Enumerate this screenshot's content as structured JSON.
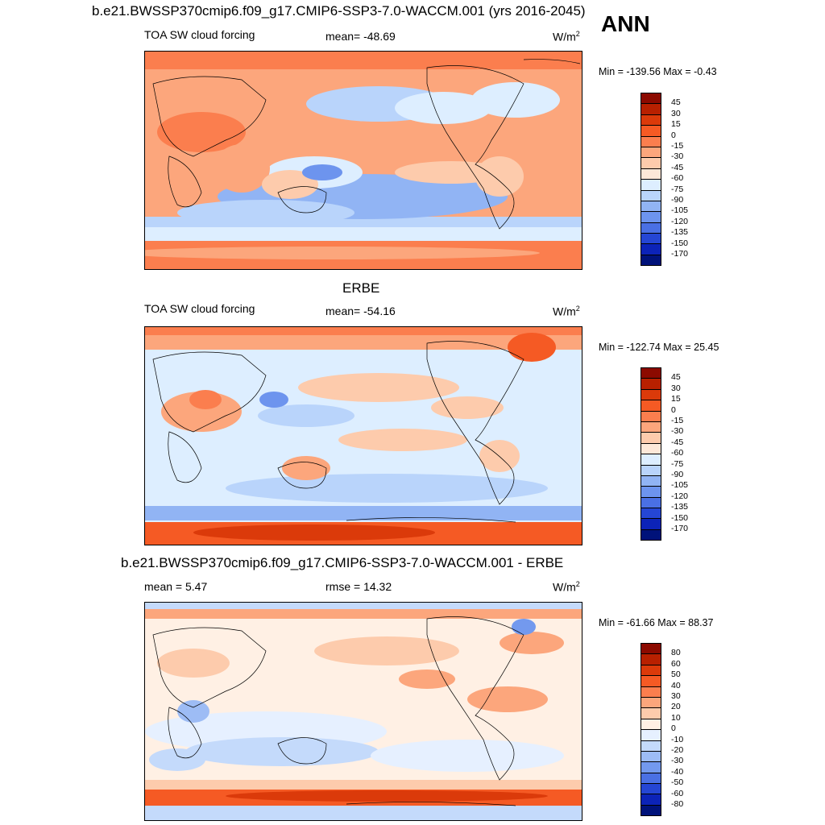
{
  "header": {
    "title": "b.e21.BWSSP370cmip6.f09_g17.CMIP6-SSP3-7.0-WACCM.001 (yrs 2016-2045)",
    "season": "ANN"
  },
  "panels": [
    {
      "id": "model",
      "heading": "",
      "left_label": "TOA SW cloud forcing",
      "center_label": "mean= -48.69",
      "units": "W/m",
      "units_sup": "2",
      "minmax": "Min = -139.56 Max =  -0.43",
      "levels": [
        "45",
        "30",
        "15",
        "0",
        "-15",
        "-30",
        "-45",
        "-60",
        "-75",
        "-90",
        "-105",
        "-120",
        "-135",
        "-150",
        "-170"
      ],
      "colors": [
        "#8c0a00",
        "#b82000",
        "#db3a0a",
        "#f55a24",
        "#fb7e4e",
        "#fca67c",
        "#fdcbac",
        "#fde8d8",
        "#ddeeff",
        "#b9d4fb",
        "#91b4f4",
        "#6d94ee",
        "#4a70e4",
        "#2546d4",
        "#0c23b8",
        "#00127a"
      ]
    },
    {
      "id": "obs",
      "heading": "ERBE",
      "left_label": "TOA SW cloud forcing",
      "center_label": "mean= -54.16",
      "units": "W/m",
      "units_sup": "2",
      "minmax": "Min = -122.74 Max =  25.45",
      "levels": [
        "45",
        "30",
        "15",
        "0",
        "-15",
        "-30",
        "-45",
        "-60",
        "-75",
        "-90",
        "-105",
        "-120",
        "-135",
        "-150",
        "-170"
      ],
      "colors": [
        "#8c0a00",
        "#b82000",
        "#db3a0a",
        "#f55a24",
        "#fb7e4e",
        "#fca67c",
        "#fdcbac",
        "#fde8d8",
        "#ddeeff",
        "#b9d4fb",
        "#91b4f4",
        "#6d94ee",
        "#4a70e4",
        "#2546d4",
        "#0c23b8",
        "#00127a"
      ]
    },
    {
      "id": "diff",
      "heading": "b.e21.BWSSP370cmip6.f09_g17.CMIP6-SSP3-7.0-WACCM.001 - ERBE",
      "left_label": "mean =   5.47",
      "center_label": "rmse =  14.32",
      "units": "W/m",
      "units_sup": "2",
      "minmax": "Min = -61.66 Max =  88.37",
      "levels": [
        "80",
        "60",
        "50",
        "40",
        "30",
        "20",
        "10",
        "0",
        "-10",
        "-20",
        "-30",
        "-40",
        "-50",
        "-60",
        "-80"
      ],
      "colors": [
        "#8c0a00",
        "#b82000",
        "#db3a0a",
        "#f55a24",
        "#fb7e4e",
        "#fca67c",
        "#fdcbac",
        "#fff0e4",
        "#e6f0ff",
        "#c4dafb",
        "#9dbcf5",
        "#7399ee",
        "#4a70e4",
        "#2546d4",
        "#0c23b8",
        "#00127a"
      ]
    }
  ]
}
